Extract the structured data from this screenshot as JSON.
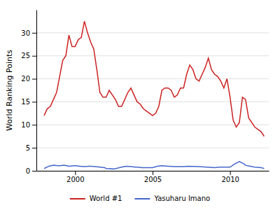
{
  "chart_data": {
    "type": "line",
    "ylabel": "World Ranking Points",
    "xlim": [
      1997.5,
      2012.5
    ],
    "ylim": [
      0,
      35
    ],
    "xticks": [
      2000,
      2005,
      2010
    ],
    "yticks": [
      0,
      5,
      10,
      15,
      20,
      25,
      30
    ],
    "grid": "y",
    "legend": "bottom",
    "series": [
      {
        "name": "World #1",
        "color": "#cc2222",
        "x": [
          1998.0,
          1998.2,
          1998.4,
          1998.6,
          1998.8,
          1999.0,
          1999.2,
          1999.4,
          1999.6,
          1999.8,
          2000.0,
          2000.2,
          2000.4,
          2000.6,
          2000.8,
          2001.0,
          2001.2,
          2001.4,
          2001.6,
          2001.8,
          2002.0,
          2002.2,
          2002.4,
          2002.6,
          2002.8,
          2003.0,
          2003.2,
          2003.4,
          2003.6,
          2003.8,
          2004.0,
          2004.2,
          2004.4,
          2004.6,
          2004.8,
          2005.0,
          2005.2,
          2005.4,
          2005.6,
          2005.8,
          2006.0,
          2006.2,
          2006.4,
          2006.6,
          2006.8,
          2007.0,
          2007.2,
          2007.4,
          2007.6,
          2007.8,
          2008.0,
          2008.2,
          2008.4,
          2008.6,
          2008.8,
          2009.0,
          2009.2,
          2009.4,
          2009.6,
          2009.8,
          2010.0,
          2010.2,
          2010.4,
          2010.6,
          2010.8,
          2011.0,
          2011.2,
          2011.4,
          2011.6,
          2011.8,
          2012.0,
          2012.2
        ],
        "values": [
          12.0,
          13.5,
          14.0,
          15.5,
          17.0,
          20.5,
          24.0,
          25.0,
          29.5,
          27.0,
          27.0,
          28.5,
          29.0,
          32.5,
          30.0,
          28.0,
          26.5,
          22.0,
          17.0,
          16.0,
          16.0,
          17.5,
          16.5,
          15.5,
          14.0,
          14.0,
          15.5,
          17.0,
          18.0,
          16.5,
          15.0,
          14.5,
          13.5,
          13.0,
          12.5,
          12.0,
          12.5,
          14.0,
          17.5,
          18.0,
          18.0,
          17.5,
          16.0,
          16.5,
          18.0,
          18.0,
          21.0,
          23.0,
          22.0,
          20.0,
          19.5,
          21.0,
          22.5,
          24.5,
          22.0,
          21.0,
          20.5,
          19.5,
          18.0,
          20.0,
          16.0,
          11.0,
          9.5,
          10.5,
          16.0,
          15.5,
          11.5,
          10.5,
          9.5,
          9.0,
          8.5,
          7.5
        ]
      },
      {
        "name": "Yasuharu Imano",
        "color": "#4466cc",
        "x": [
          1998.0,
          1998.3,
          1998.6,
          1998.9,
          1999.0,
          1999.3,
          1999.6,
          1999.9,
          2000.0,
          2000.3,
          2000.6,
          2000.9,
          2001.0,
          2001.3,
          2001.6,
          2001.9,
          2002.0,
          2002.5,
          2003.0,
          2003.3,
          2003.6,
          2003.9,
          2004.0,
          2004.3,
          2005.0,
          2005.3,
          2005.6,
          2006.0,
          2006.5,
          2007.0,
          2007.3,
          2008.0,
          2008.5,
          2009.0,
          2009.3,
          2009.6,
          2009.9,
          2010.0,
          2010.3,
          2010.6,
          2010.9,
          2011.0,
          2011.3,
          2011.6,
          2012.0,
          2012.2
        ],
        "values": [
          0.5,
          1.0,
          1.2,
          1.1,
          1.1,
          1.2,
          1.0,
          1.1,
          1.1,
          1.0,
          0.9,
          1.0,
          1.0,
          0.9,
          0.8,
          0.7,
          0.5,
          0.4,
          0.8,
          1.0,
          0.9,
          0.8,
          0.8,
          0.7,
          0.7,
          1.0,
          1.1,
          1.0,
          0.9,
          0.9,
          1.0,
          0.9,
          0.8,
          0.7,
          0.8,
          0.8,
          0.8,
          0.8,
          1.5,
          2.0,
          1.5,
          1.2,
          1.0,
          0.8,
          0.7,
          0.5
        ]
      }
    ]
  }
}
